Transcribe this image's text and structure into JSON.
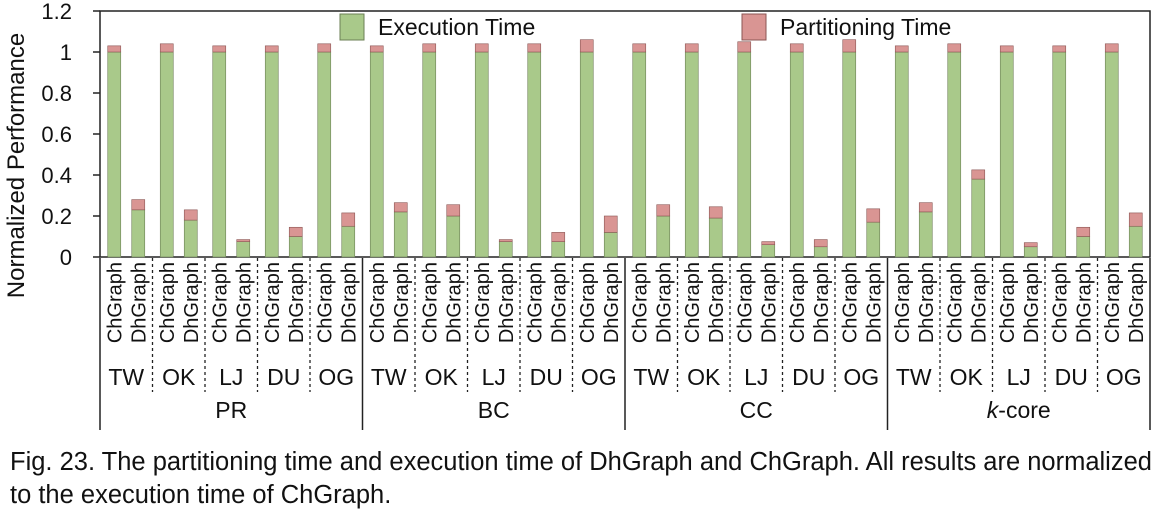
{
  "chart_data": {
    "type": "bar",
    "stacked": true,
    "ylabel": "Normalized Performance",
    "ylim": [
      0,
      1.2
    ],
    "yticks": [
      "0",
      "0.2",
      "0.4",
      "0.6",
      "0.8",
      "1",
      "1.2"
    ],
    "grid": false,
    "legend_position": "top",
    "systems": [
      "ChGraph",
      "DhGraph"
    ],
    "datasets": [
      "TW",
      "OK",
      "LJ",
      "DU",
      "OG"
    ],
    "algorithms": [
      {
        "label": "PR",
        "italic_prefix": "",
        "suffix": "PR"
      },
      {
        "label": "BC",
        "italic_prefix": "",
        "suffix": "BC"
      },
      {
        "label": "CC",
        "italic_prefix": "",
        "suffix": "CC"
      },
      {
        "label": "k-core",
        "italic_prefix": "k",
        "suffix": "-core"
      }
    ],
    "series": [
      {
        "name": "Execution Time",
        "color": "#a9c98a",
        "values": [
          [
            [
              1.0,
              0.23
            ],
            [
              1.0,
              0.18
            ],
            [
              1.0,
              0.075
            ],
            [
              1.0,
              0.1
            ],
            [
              1.0,
              0.15
            ]
          ],
          [
            [
              1.0,
              0.22
            ],
            [
              1.0,
              0.2
            ],
            [
              1.0,
              0.075
            ],
            [
              1.0,
              0.075
            ],
            [
              1.0,
              0.12
            ]
          ],
          [
            [
              1.0,
              0.2
            ],
            [
              1.0,
              0.19
            ],
            [
              1.0,
              0.06
            ],
            [
              1.0,
              0.05
            ],
            [
              1.0,
              0.17
            ]
          ],
          [
            [
              1.0,
              0.22
            ],
            [
              1.0,
              0.38
            ],
            [
              1.0,
              0.05
            ],
            [
              1.0,
              0.1
            ],
            [
              1.0,
              0.15
            ]
          ]
        ]
      },
      {
        "name": "Partitioning Time",
        "color": "#d99593",
        "values": [
          [
            [
              0.03,
              0.05
            ],
            [
              0.04,
              0.05
            ],
            [
              0.03,
              0.01
            ],
            [
              0.03,
              0.045
            ],
            [
              0.04,
              0.065
            ]
          ],
          [
            [
              0.03,
              0.045
            ],
            [
              0.04,
              0.055
            ],
            [
              0.04,
              0.01
            ],
            [
              0.04,
              0.045
            ],
            [
              0.06,
              0.08
            ]
          ],
          [
            [
              0.04,
              0.055
            ],
            [
              0.04,
              0.055
            ],
            [
              0.05,
              0.015
            ],
            [
              0.04,
              0.035
            ],
            [
              0.06,
              0.065
            ]
          ],
          [
            [
              0.03,
              0.045
            ],
            [
              0.04,
              0.045
            ],
            [
              0.03,
              0.02
            ],
            [
              0.03,
              0.045
            ],
            [
              0.04,
              0.065
            ]
          ]
        ]
      }
    ]
  },
  "caption": "Fig. 23. The partitioning time and execution time of DhGraph and ChGraph. All results are normalized to the execution time of ChGraph."
}
